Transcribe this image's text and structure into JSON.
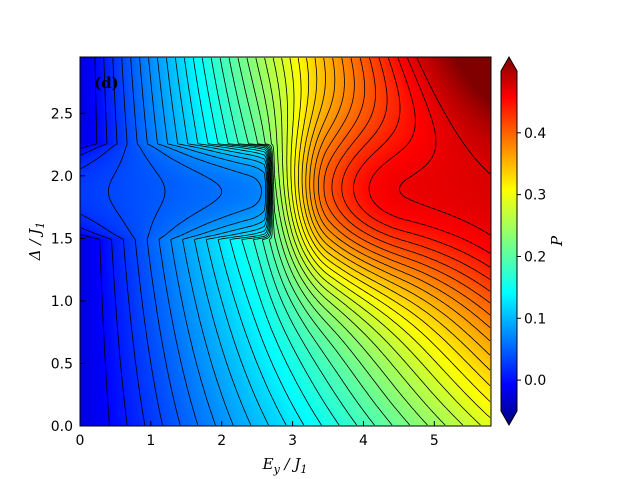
{
  "chart_data": {
    "type": "heatmap",
    "panel_label": "(d)",
    "xlabel": "E_y / J_1",
    "ylabel": "Δ / J_1",
    "colorbar_label": "P",
    "xlim": [
      0,
      5.8
    ],
    "ylim": [
      0,
      2.95
    ],
    "x_ticks": [
      "0",
      "1",
      "2",
      "3",
      "4",
      "5"
    ],
    "y_ticks": [
      "0.0",
      "0.5",
      "1.0",
      "1.5",
      "2.0",
      "2.5"
    ],
    "colorbar_ticks": [
      "0.0",
      "0.1",
      "0.2",
      "0.3",
      "0.4"
    ],
    "colorbar_range": [
      -0.05,
      0.5
    ],
    "colormap": "jet",
    "colorbar_extend": "both",
    "contour_lines": true,
    "contour_color": "#000000",
    "features": {
      "gapped_region_delta": [
        1.5,
        2.25
      ],
      "tip_ey": 2.7,
      "max_value_approx": 0.45
    }
  }
}
